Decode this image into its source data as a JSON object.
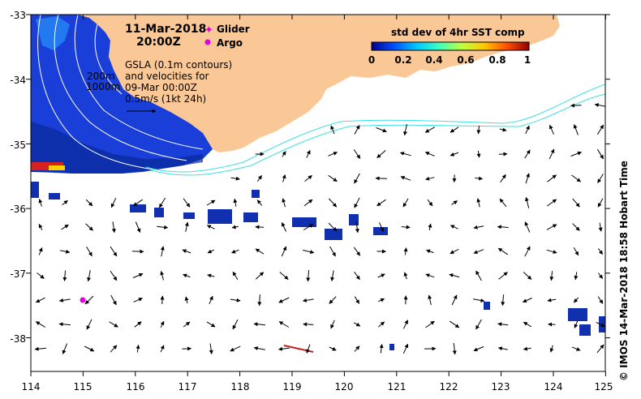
{
  "map": {
    "date": "11-Mar-2018",
    "time": "20:00Z",
    "legend_glider": "Glider",
    "legend_argo": "Argo",
    "glider_color": "#e000e0",
    "argo_color": "#e000e0",
    "land_color": "#f9c896",
    "current_color": "#40e0e0",
    "gsla_lines": [
      "GSLA (0.1m contours)",
      "and velocities for",
      "09-Mar 00:00Z",
      "0.5m/s (1kt 24h)"
    ],
    "depth_200": "200m",
    "depth_1000": "1000m",
    "colorbar": {
      "title": "std dev of 4hr SST comp",
      "ticks": [
        "0",
        "0.2",
        "0.4",
        "0.6",
        "0.8",
        "1"
      ],
      "colors": [
        "#00008f",
        "#0050ff",
        "#00c8ff",
        "#40ffbf",
        "#bfff40",
        "#ffc800",
        "#ff5000",
        "#8f0000"
      ]
    },
    "x_ticks": [
      "114",
      "115",
      "116",
      "117",
      "118",
      "119",
      "120",
      "121",
      "122",
      "123",
      "124",
      "125"
    ],
    "y_ticks": [
      "-33",
      "-34",
      "-35",
      "-36",
      "-37",
      "-38"
    ],
    "credit": "© IMOS 14-Mar-2018 18:58 Hobart Time"
  }
}
